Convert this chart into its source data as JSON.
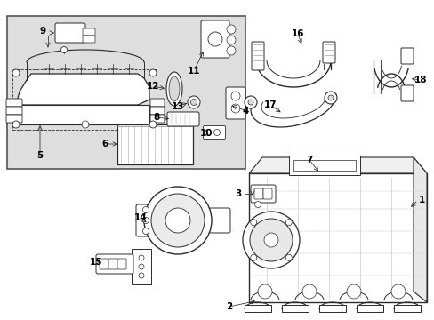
{
  "fig_width": 4.89,
  "fig_height": 3.6,
  "dpi": 100,
  "lc": "#2a2a2a",
  "bg": "white",
  "box_bg": "#dedede",
  "label_fs": 7.5
}
